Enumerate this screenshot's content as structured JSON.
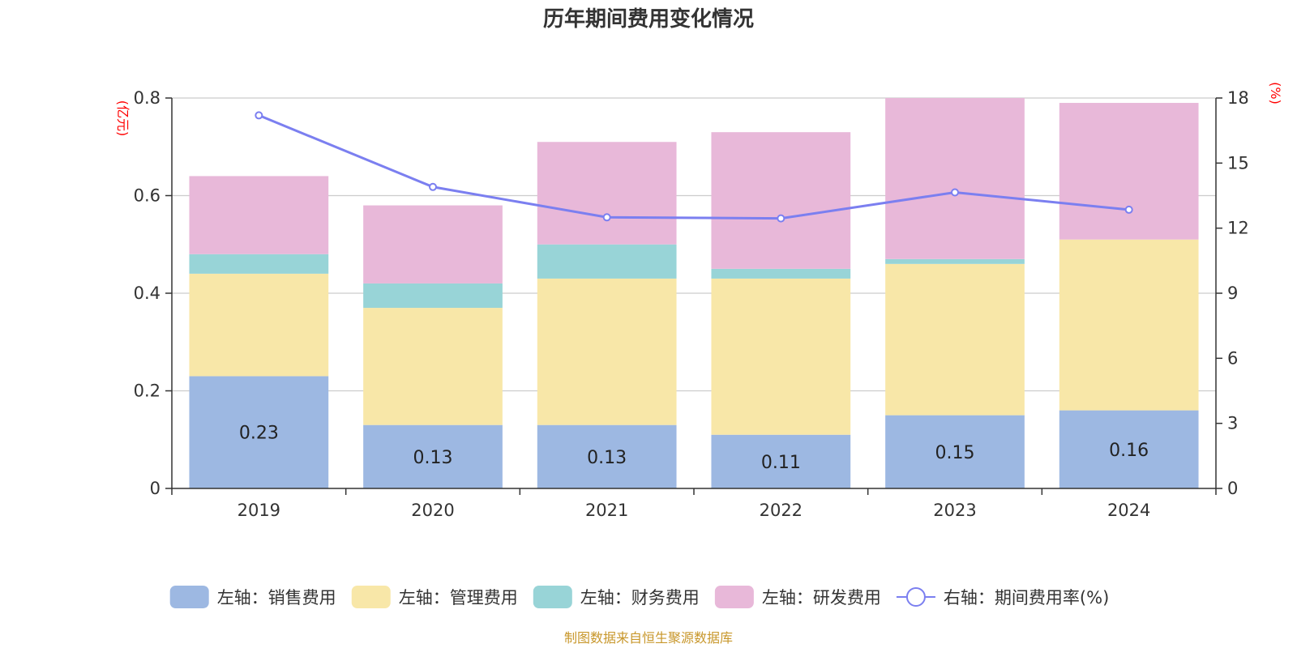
{
  "chart_data": {
    "type": "bar",
    "title": "历年期间费用变化情况",
    "categories": [
      "2019",
      "2020",
      "2021",
      "2022",
      "2023",
      "2024"
    ],
    "series": [
      {
        "name": "左轴：销售费用",
        "type": "bar",
        "axis": "left",
        "color": "#9db8e2",
        "values": [
          0.23,
          0.13,
          0.13,
          0.11,
          0.15,
          0.16
        ]
      },
      {
        "name": "左轴：管理费用",
        "type": "bar",
        "axis": "left",
        "color": "#f8e7a8",
        "values": [
          0.21,
          0.24,
          0.3,
          0.32,
          0.31,
          0.35
        ]
      },
      {
        "name": "左轴：财务费用",
        "type": "bar",
        "axis": "left",
        "color": "#98d4d7",
        "values": [
          0.04,
          0.05,
          0.07,
          0.02,
          0.01,
          0.0
        ]
      },
      {
        "name": "左轴：研发费用",
        "type": "bar",
        "axis": "left",
        "color": "#e8b8d9",
        "values": [
          0.16,
          0.16,
          0.21,
          0.28,
          0.33,
          0.28
        ]
      },
      {
        "name": "右轴：期间费用率(%)",
        "type": "line",
        "axis": "right",
        "color": "#7b7ff0",
        "values": [
          17.2,
          13.9,
          12.5,
          12.45,
          13.65,
          12.85
        ]
      }
    ],
    "bar_labels": [
      "0.23",
      "0.13",
      "0.13",
      "0.11",
      "0.15",
      "0.16"
    ],
    "left_axis": {
      "unit": "(亿元)",
      "ylim": [
        0,
        0.8
      ],
      "ticks": [
        "0",
        "0.2",
        "0.4",
        "0.6",
        "0.8"
      ],
      "tick_values": [
        0,
        0.2,
        0.4,
        0.6,
        0.8
      ]
    },
    "right_axis": {
      "unit": "(%)",
      "ylim": [
        0,
        18
      ],
      "ticks": [
        "0",
        "3",
        "6",
        "9",
        "12",
        "15",
        "18"
      ],
      "tick_values": [
        0,
        3,
        6,
        9,
        12,
        15,
        18
      ]
    },
    "grid": true,
    "legend_position": "bottom",
    "source": "制图数据来自恒生聚源数据库",
    "colors": {
      "axis": "#333333",
      "grid": "#cccccc",
      "unit": "#ff0000",
      "source": "#c8972b"
    }
  }
}
